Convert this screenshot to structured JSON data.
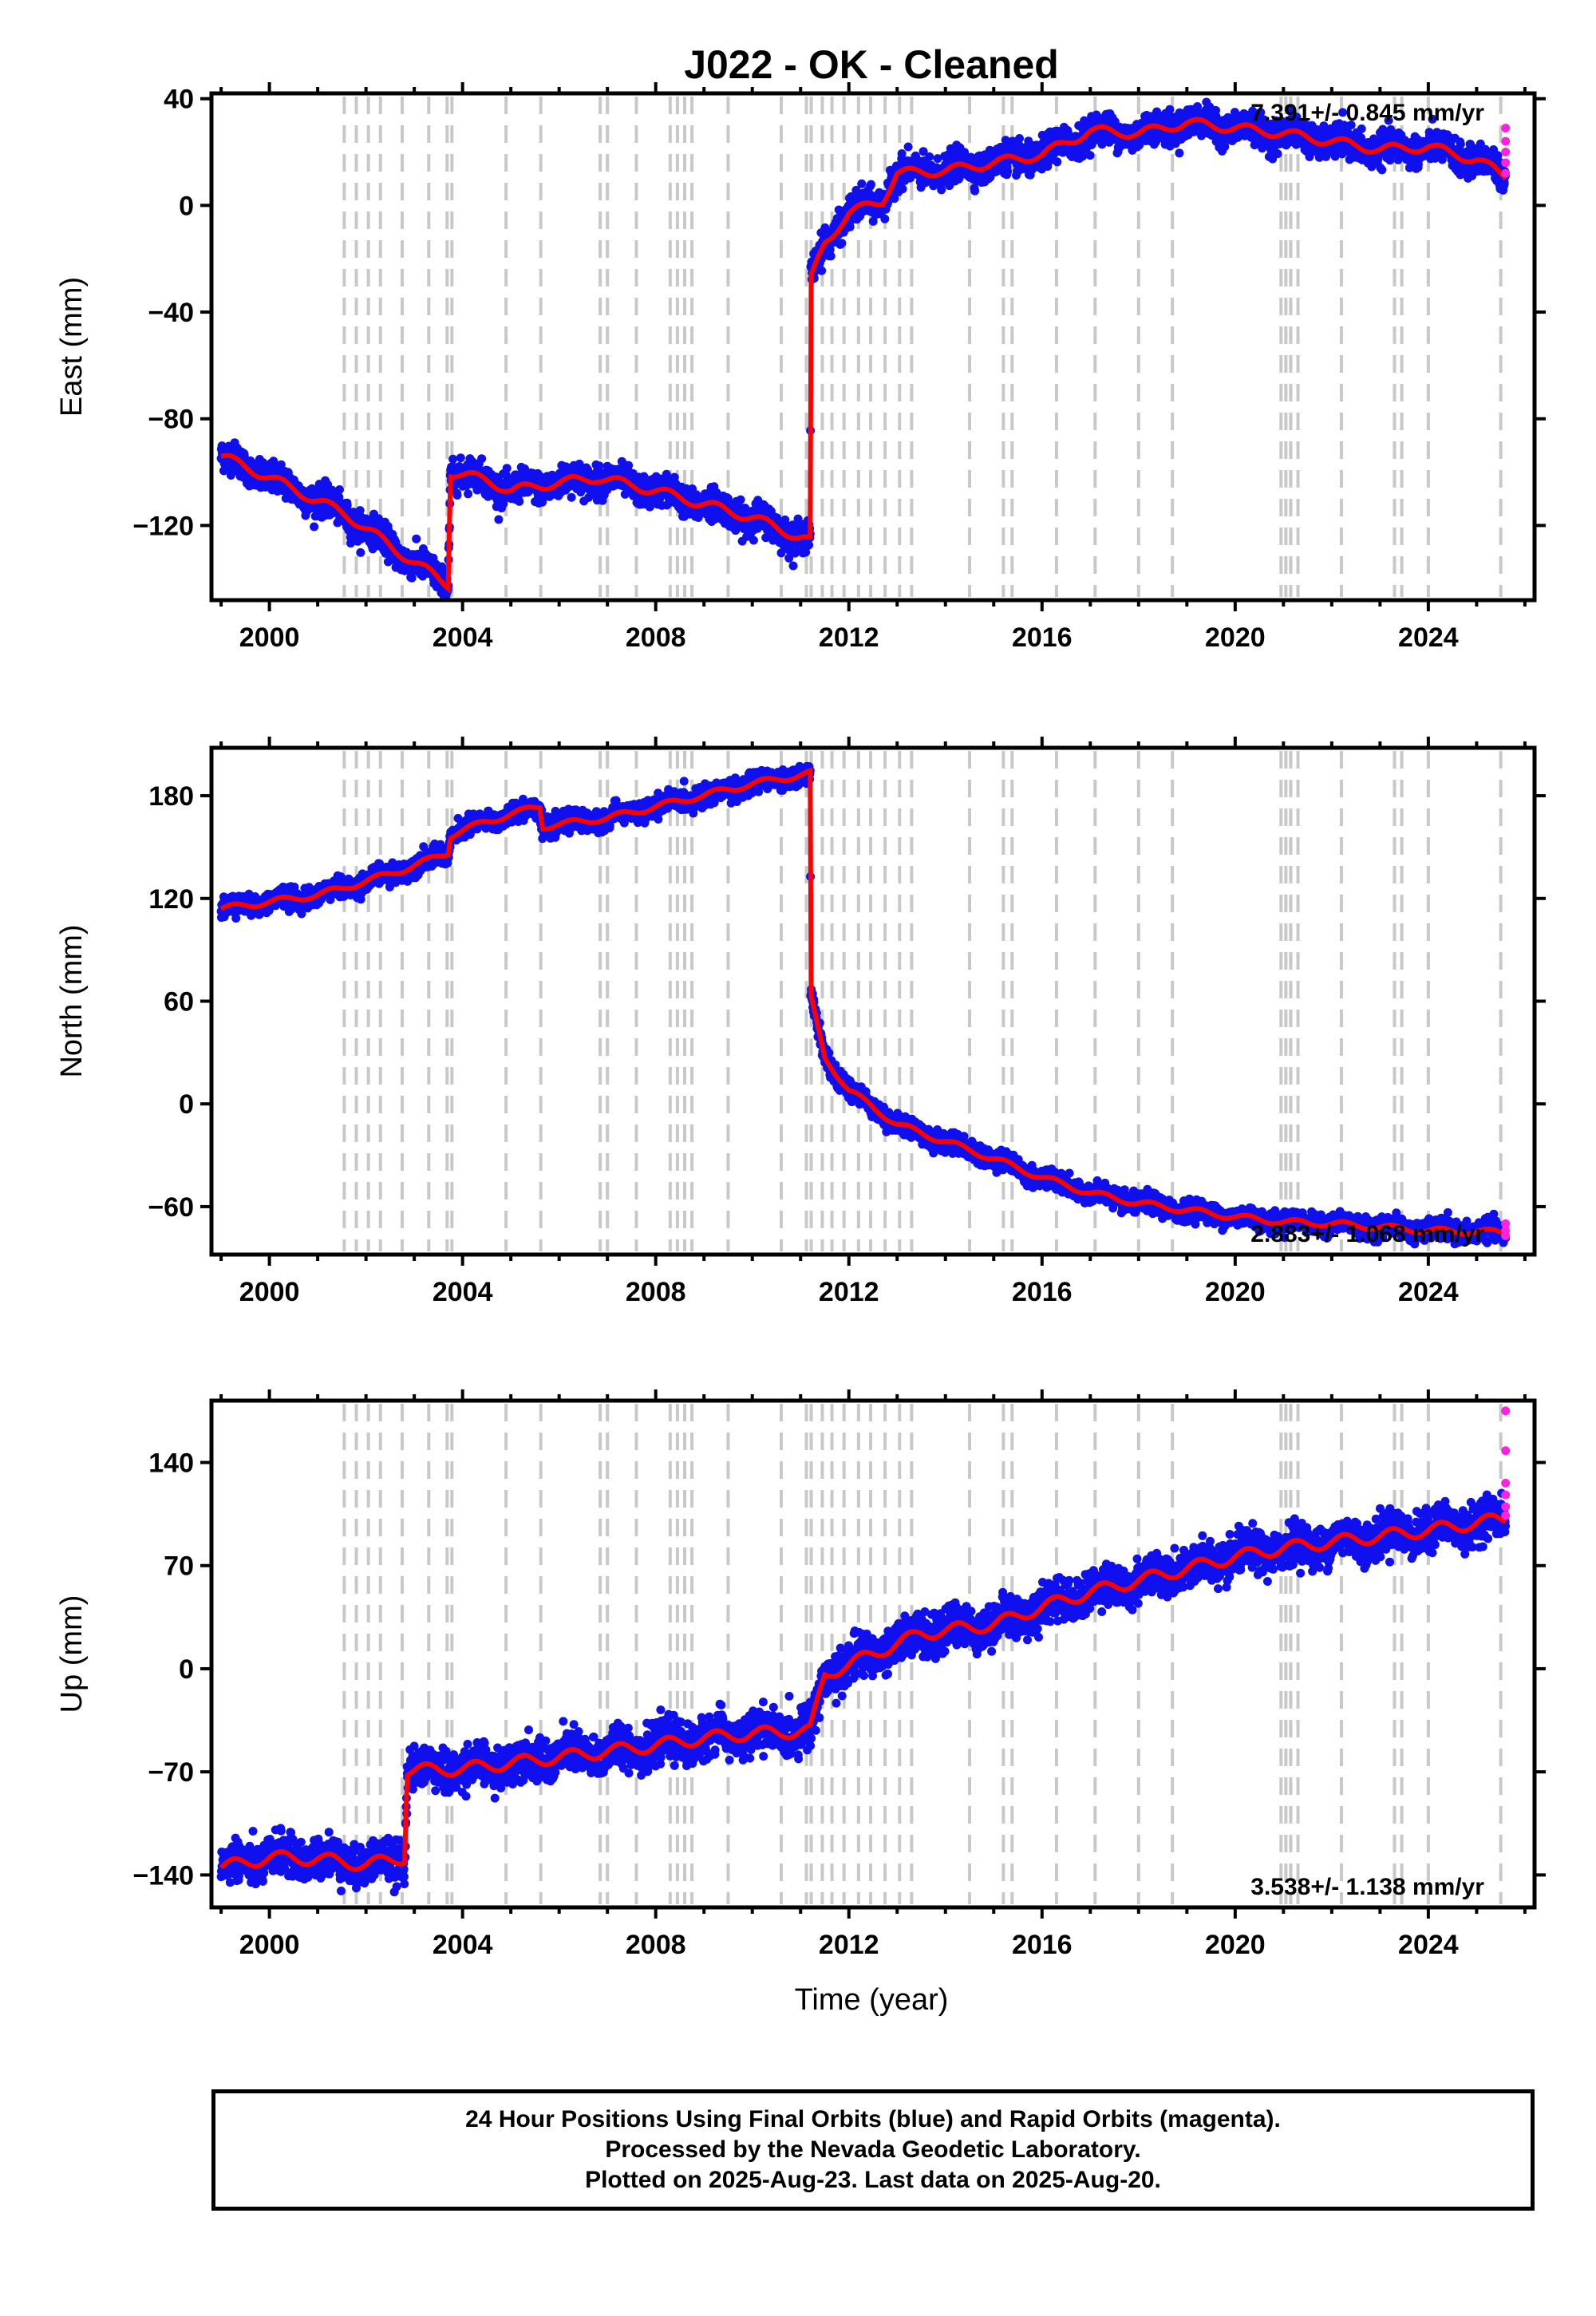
{
  "title": "J022  - OK - Cleaned",
  "xlabel": "Time (year)",
  "footer": {
    "line1": "24 Hour Positions Using Final Orbits (blue) and Rapid Orbits (magenta).",
    "line2": "Processed by the Nevada Geodetic Laboratory.",
    "line3": "Plotted on 2025-Aug-23. Last data on 2025-Aug-20."
  },
  "colors": {
    "final_orbits": "#1010ee",
    "rapid_orbits": "#ff22dd",
    "model": "#ff0000",
    "steps": "#c8c8c8"
  },
  "chart_data": [
    {
      "type": "scatter",
      "name": "east",
      "ylabel": "East (mm)",
      "rate": "7.391+/- 0.845 mm/yr",
      "rate_position": "top-right",
      "xlim": [
        1998.8,
        2026.2
      ],
      "ylim": [
        -148,
        42
      ],
      "yticks": [
        40,
        0,
        -40,
        -80,
        -120
      ],
      "xticks": [
        2000,
        2004,
        2008,
        2012,
        2016,
        2020,
        2024
      ],
      "grid": false,
      "trend": [
        {
          "x": 1999.0,
          "y": -94
        },
        {
          "x": 2000.0,
          "y": -102
        },
        {
          "x": 2001.6,
          "y": -116
        },
        {
          "x": 2002.3,
          "y": -125
        },
        {
          "x": 2003.0,
          "y": -134
        },
        {
          "x": 2003.7,
          "y": -142
        },
        {
          "x": 2003.75,
          "y": -100
        },
        {
          "x": 2004.5,
          "y": -103
        },
        {
          "x": 2005.0,
          "y": -107
        },
        {
          "x": 2005.6,
          "y": -105
        },
        {
          "x": 2006.8,
          "y": -102
        },
        {
          "x": 2008.0,
          "y": -107
        },
        {
          "x": 2009.0,
          "y": -112
        },
        {
          "x": 2010.0,
          "y": -117
        },
        {
          "x": 2011.2,
          "y": -126
        },
        {
          "x": 2011.21,
          "y": -28
        },
        {
          "x": 2011.5,
          "y": -14
        },
        {
          "x": 2012.0,
          "y": -3
        },
        {
          "x": 2012.7,
          "y": 2
        },
        {
          "x": 2013.0,
          "y": 12
        },
        {
          "x": 2014.0,
          "y": 13
        },
        {
          "x": 2016.0,
          "y": 19
        },
        {
          "x": 2017.0,
          "y": 28
        },
        {
          "x": 2018.0,
          "y": 27
        },
        {
          "x": 2019.0,
          "y": 31
        },
        {
          "x": 2020.0,
          "y": 29
        },
        {
          "x": 2021.0,
          "y": 27
        },
        {
          "x": 2022.0,
          "y": 24
        },
        {
          "x": 2023.0,
          "y": 21
        },
        {
          "x": 2024.0,
          "y": 22
        },
        {
          "x": 2025.0,
          "y": 17
        },
        {
          "x": 2025.6,
          "y": 11
        }
      ],
      "rapid": [
        {
          "x": 2025.6,
          "y": 29
        },
        {
          "x": 2025.6,
          "y": 24
        },
        {
          "x": 2025.6,
          "y": 20
        },
        {
          "x": 2025.6,
          "y": 16
        },
        {
          "x": 2025.6,
          "y": 12
        }
      ],
      "noise": 5
    },
    {
      "type": "scatter",
      "name": "north",
      "ylabel": "North (mm)",
      "rate": "2.883+/- 1.068 mm/yr",
      "rate_position": "bottom-right",
      "xlim": [
        1998.8,
        2026.2
      ],
      "ylim": [
        -88,
        208
      ],
      "yticks": [
        180,
        120,
        60,
        0,
        -60
      ],
      "xticks": [
        2000,
        2004,
        2008,
        2012,
        2016,
        2020,
        2024
      ],
      "grid": false,
      "trend": [
        {
          "x": 1999.0,
          "y": 114
        },
        {
          "x": 2000.0,
          "y": 118
        },
        {
          "x": 2001.0,
          "y": 122
        },
        {
          "x": 2002.0,
          "y": 130
        },
        {
          "x": 2003.0,
          "y": 139
        },
        {
          "x": 2003.7,
          "y": 147
        },
        {
          "x": 2003.75,
          "y": 157
        },
        {
          "x": 2004.5,
          "y": 165
        },
        {
          "x": 2005.6,
          "y": 174
        },
        {
          "x": 2005.65,
          "y": 162
        },
        {
          "x": 2007.0,
          "y": 167
        },
        {
          "x": 2008.5,
          "y": 177
        },
        {
          "x": 2010.0,
          "y": 187
        },
        {
          "x": 2011.2,
          "y": 193
        },
        {
          "x": 2011.21,
          "y": 62
        },
        {
          "x": 2011.5,
          "y": 27
        },
        {
          "x": 2012.0,
          "y": 8
        },
        {
          "x": 2013.0,
          "y": -12
        },
        {
          "x": 2014.0,
          "y": -22
        },
        {
          "x": 2015.0,
          "y": -32
        },
        {
          "x": 2016.0,
          "y": -43
        },
        {
          "x": 2017.0,
          "y": -52
        },
        {
          "x": 2018.0,
          "y": -58
        },
        {
          "x": 2019.0,
          "y": -62
        },
        {
          "x": 2020.0,
          "y": -66
        },
        {
          "x": 2021.0,
          "y": -69
        },
        {
          "x": 2022.0,
          "y": -70
        },
        {
          "x": 2023.0,
          "y": -72
        },
        {
          "x": 2024.0,
          "y": -74
        },
        {
          "x": 2025.6,
          "y": -75
        }
      ],
      "rapid": [
        {
          "x": 2025.6,
          "y": -70
        },
        {
          "x": 2025.6,
          "y": -74
        },
        {
          "x": 2025.6,
          "y": -77
        }
      ],
      "noise": 5
    },
    {
      "type": "scatter",
      "name": "up",
      "ylabel": "Up (mm)",
      "rate": "3.538+/- 1.138 mm/yr",
      "rate_position": "bottom-right",
      "xlim": [
        1998.8,
        2026.2
      ],
      "ylim": [
        -162,
        182
      ],
      "yticks": [
        140,
        70,
        0,
        -70,
        -140
      ],
      "xticks": [
        2000,
        2004,
        2008,
        2012,
        2016,
        2020,
        2024
      ],
      "grid": false,
      "trend": [
        {
          "x": 1999.0,
          "y": -135
        },
        {
          "x": 2000.0,
          "y": -128
        },
        {
          "x": 2001.0,
          "y": -129
        },
        {
          "x": 2002.0,
          "y": -133
        },
        {
          "x": 2002.8,
          "y": -128
        },
        {
          "x": 2002.85,
          "y": -69
        },
        {
          "x": 2004.0,
          "y": -68
        },
        {
          "x": 2005.0,
          "y": -64
        },
        {
          "x": 2006.0,
          "y": -60
        },
        {
          "x": 2007.0,
          "y": -56
        },
        {
          "x": 2008.0,
          "y": -52
        },
        {
          "x": 2009.0,
          "y": -47
        },
        {
          "x": 2010.0,
          "y": -44
        },
        {
          "x": 2011.2,
          "y": -42
        },
        {
          "x": 2011.5,
          "y": -4
        },
        {
          "x": 2012.5,
          "y": 10
        },
        {
          "x": 2013.5,
          "y": 24
        },
        {
          "x": 2015.0,
          "y": 30
        },
        {
          "x": 2016.0,
          "y": 42
        },
        {
          "x": 2017.0,
          "y": 52
        },
        {
          "x": 2018.0,
          "y": 60
        },
        {
          "x": 2019.0,
          "y": 68
        },
        {
          "x": 2020.0,
          "y": 76
        },
        {
          "x": 2021.0,
          "y": 82
        },
        {
          "x": 2022.0,
          "y": 86
        },
        {
          "x": 2023.0,
          "y": 90
        },
        {
          "x": 2024.0,
          "y": 94
        },
        {
          "x": 2025.6,
          "y": 102
        }
      ],
      "rapid": [
        {
          "x": 2025.6,
          "y": 175
        },
        {
          "x": 2025.6,
          "y": 148
        },
        {
          "x": 2025.6,
          "y": 126
        },
        {
          "x": 2025.6,
          "y": 118
        },
        {
          "x": 2025.6,
          "y": 110
        },
        {
          "x": 2025.6,
          "y": 104
        }
      ],
      "noise": 12
    }
  ],
  "step_epochs": [
    2001.55,
    2001.8,
    2002.05,
    2002.3,
    2002.75,
    2003.3,
    2003.68,
    2003.78,
    2004.9,
    2005.62,
    2006.85,
    2007.0,
    2007.6,
    2008.3,
    2008.45,
    2008.6,
    2008.75,
    2009.5,
    2010.6,
    2011.12,
    2011.22,
    2011.45,
    2011.65,
    2011.9,
    2012.2,
    2012.45,
    2012.75,
    2013.05,
    2013.3,
    2014.5,
    2015.2,
    2015.38,
    2016.3,
    2017.1,
    2018.0,
    2018.7,
    2020.95,
    2021.05,
    2021.15,
    2021.3,
    2022.2,
    2023.3,
    2023.45,
    2024.0,
    2025.5
  ]
}
